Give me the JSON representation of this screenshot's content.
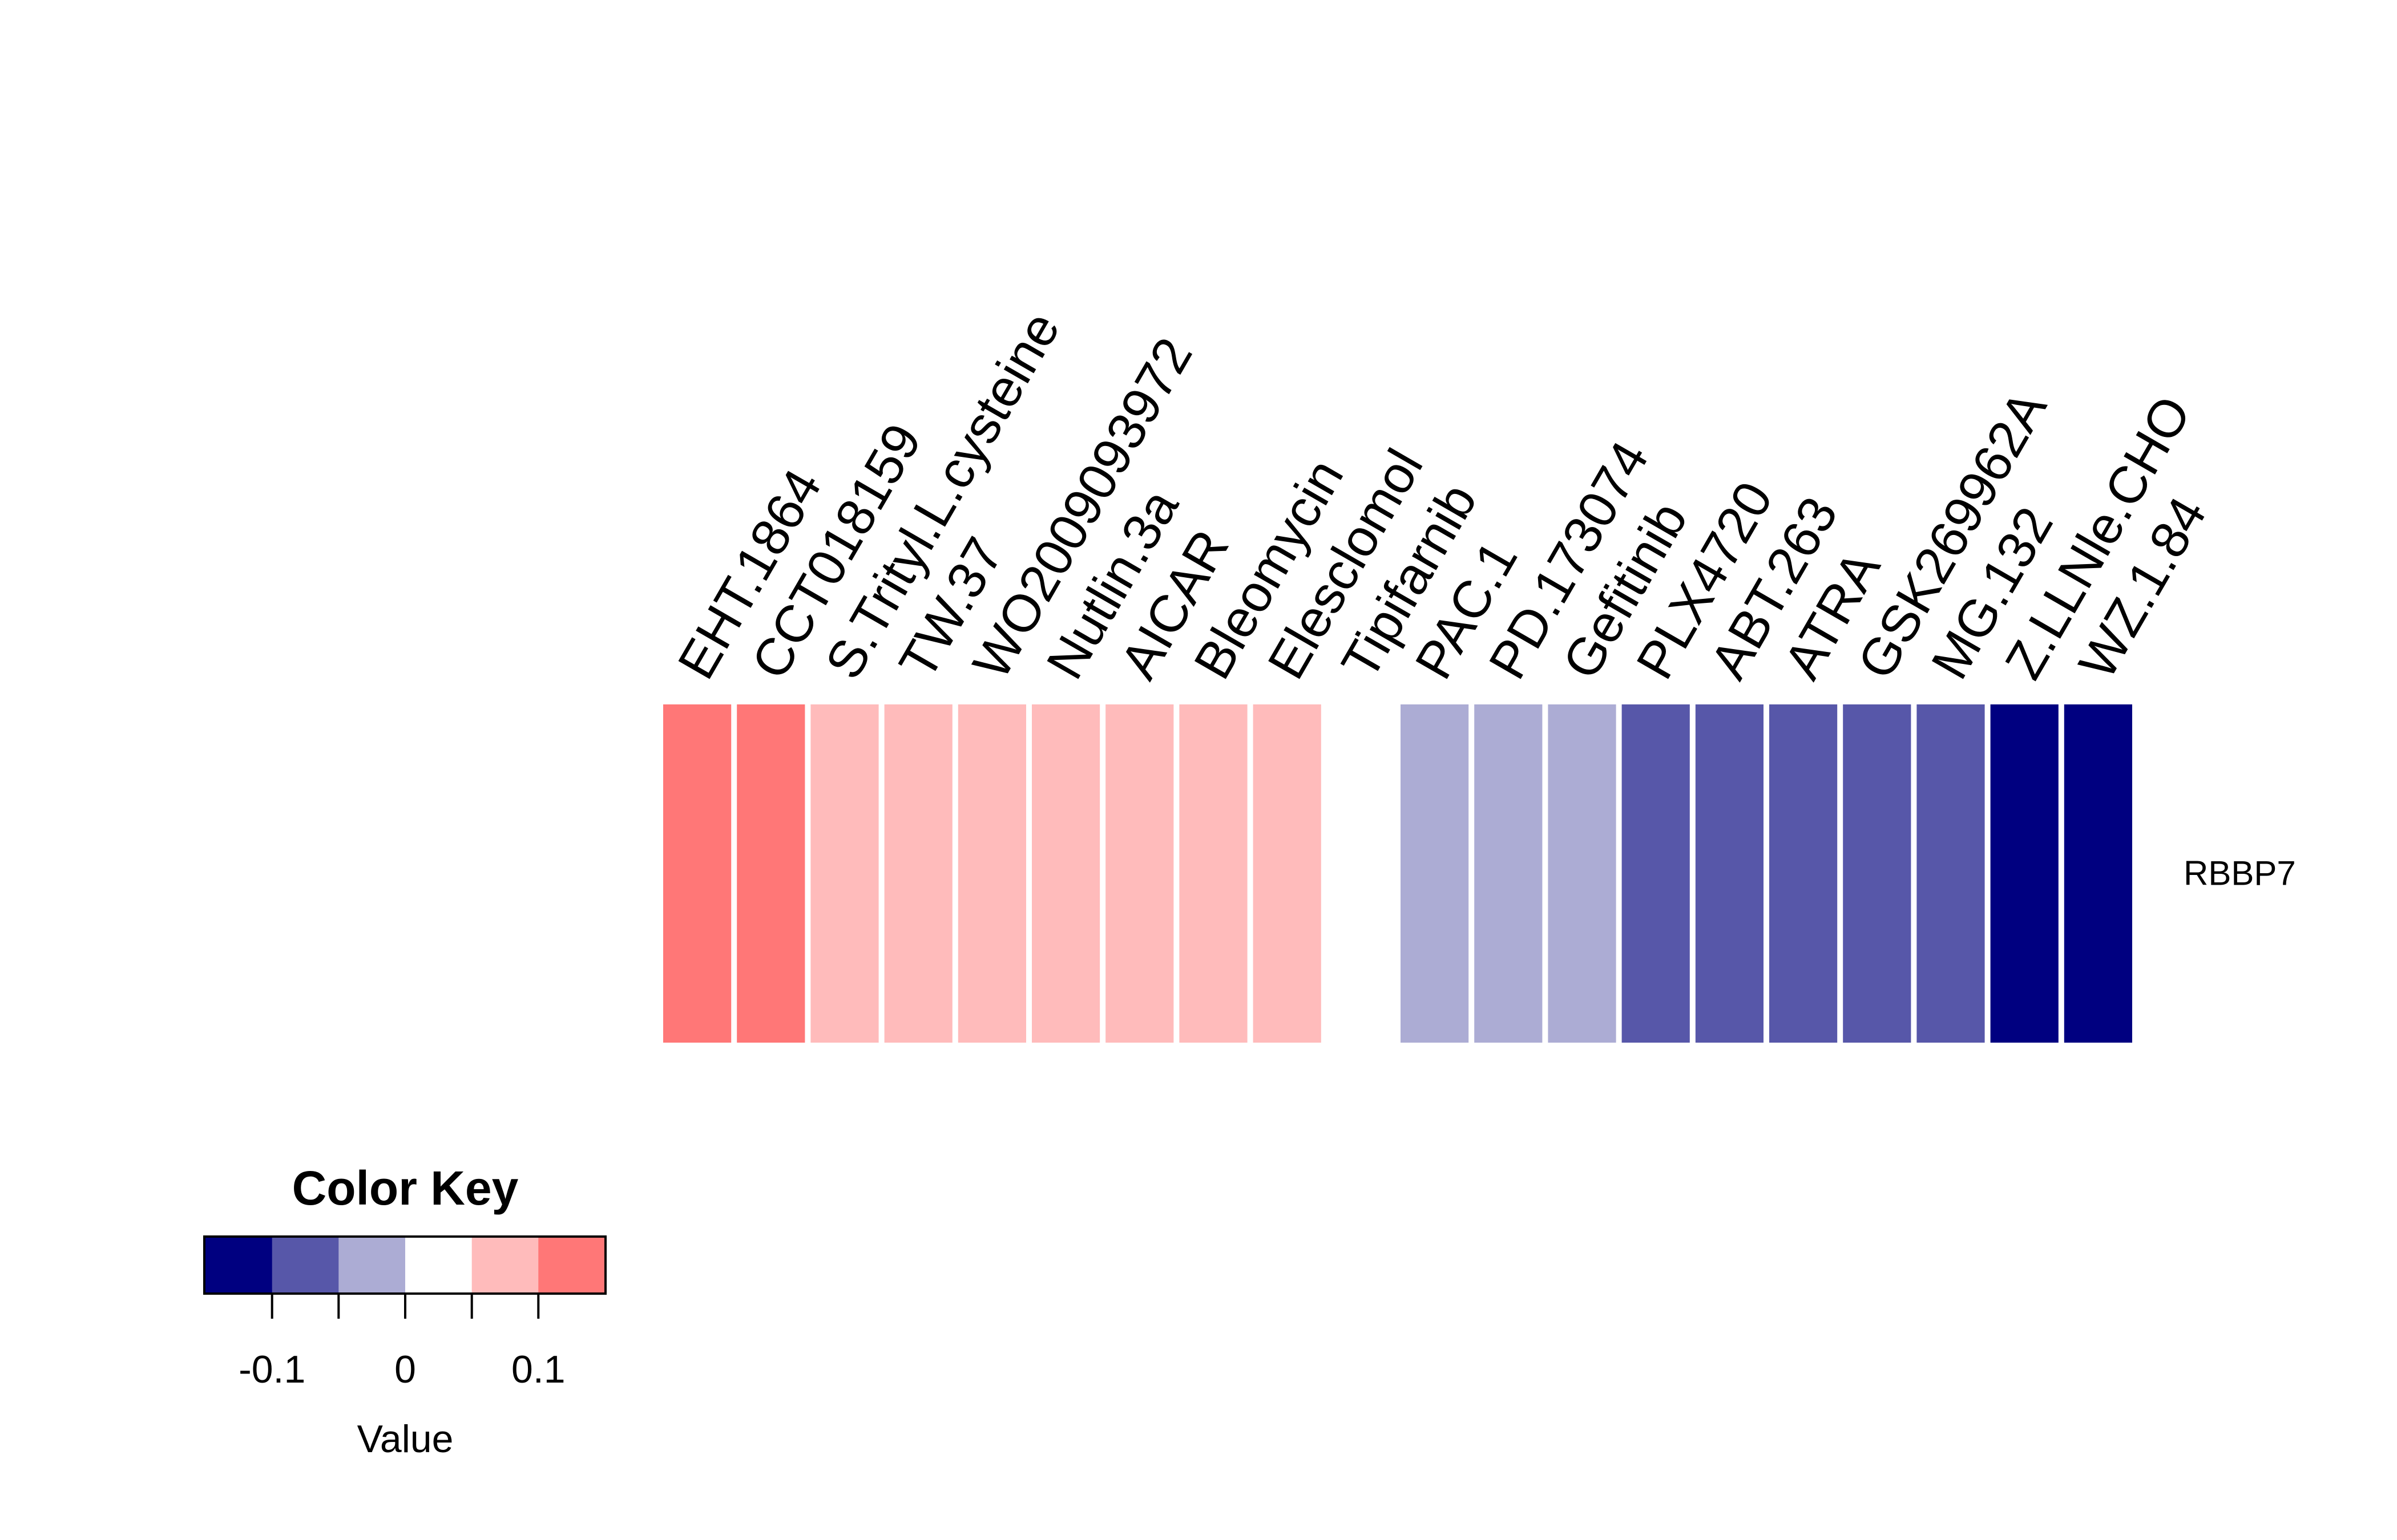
{
  "chart_data": [
    {
      "type": "heatmap",
      "rows": [
        "RBBP7"
      ],
      "columns": [
        "EHT.1864",
        "CCT018159",
        "S.Trityl.L.cysteine",
        "TW.37",
        "WO2009093972",
        "Nutlin.3a",
        "AICAR",
        "Bleomycin",
        "Elesclomol",
        "Tipifarnib",
        "PAC.1",
        "PD.173074",
        "Gefitinib",
        "PLX4720",
        "ABT.263",
        "ATRA",
        "GSK269962A",
        "MG.132",
        "Z.LLNle.CHO",
        "WZ.1.84"
      ],
      "values": [
        [
          0.13,
          0.13,
          0.09,
          0.09,
          0.09,
          0.09,
          0.09,
          0.09,
          0.09,
          0.04,
          -0.04,
          -0.04,
          -0.04,
          -0.09,
          -0.09,
          -0.09,
          -0.09,
          -0.09,
          -0.13,
          -0.13
        ]
      ],
      "colorscale": {
        "breaks": [
          -0.15,
          -0.1,
          -0.05,
          0,
          0.05,
          0.1,
          0.15
        ],
        "colors": [
          "#000080",
          "#5757A9",
          "#ACACD4",
          "#FFFFFF",
          "#FFBBBB",
          "#FF7777",
          "#FF3333"
        ]
      }
    },
    {
      "type": "color-key",
      "title": "Color Key",
      "xlabel": "Value",
      "xlim": [
        -0.15,
        0.15
      ],
      "ticks": [
        -0.1,
        -0.05,
        0,
        0.05,
        0.1
      ],
      "tick_labels": [
        "-0.1",
        "",
        "0",
        "",
        "0.1"
      ]
    }
  ]
}
